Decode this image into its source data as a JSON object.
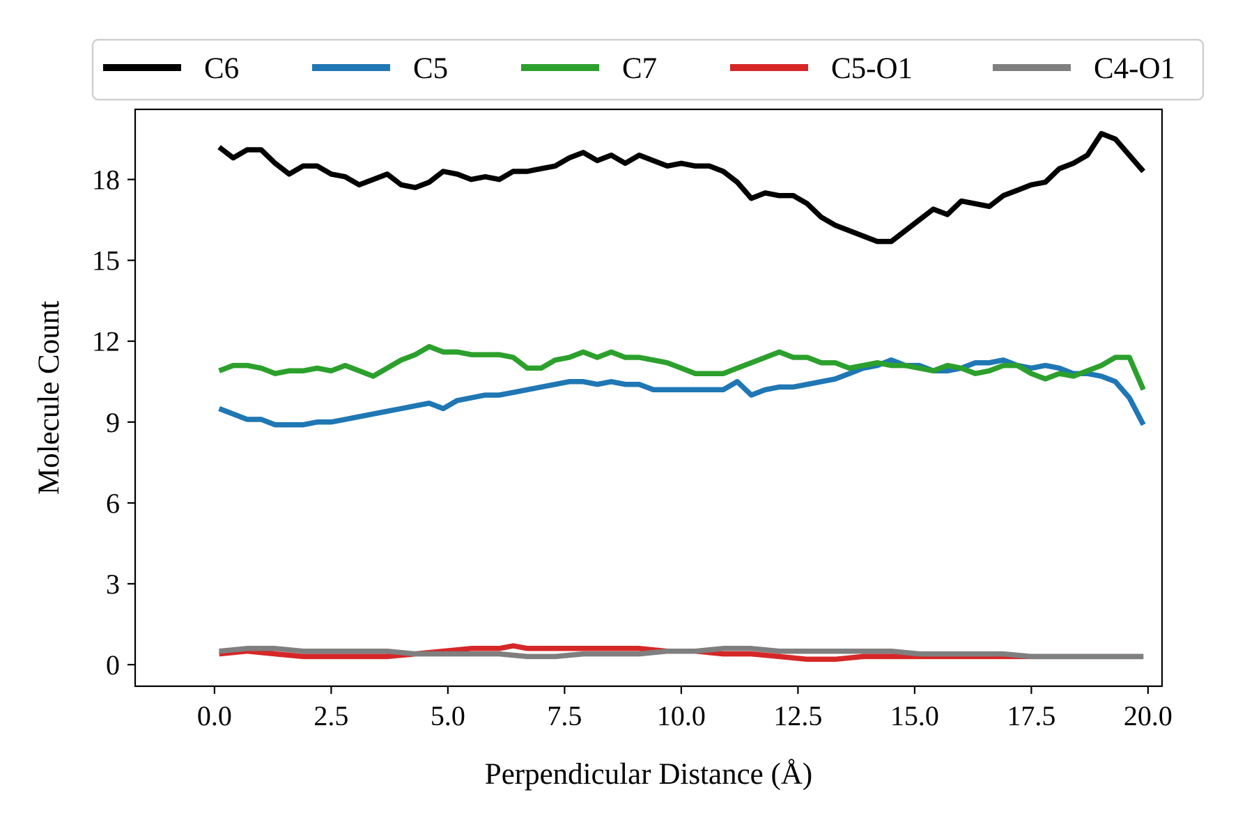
{
  "chart_data": {
    "type": "line",
    "xlabel": "Perpendicular Distance (Å)",
    "ylabel": "Molecule Count",
    "xlim": [
      -1.7,
      20.3
    ],
    "ylim": [
      -0.8,
      20.6
    ],
    "xticks": [
      0.0,
      2.5,
      5.0,
      7.5,
      10.0,
      12.5,
      15.0,
      17.5,
      20.0
    ],
    "xtick_labels": [
      "0.0",
      "2.5",
      "5.0",
      "7.5",
      "10.0",
      "12.5",
      "15.0",
      "17.5",
      "20.0"
    ],
    "yticks": [
      0,
      3,
      6,
      9,
      12,
      15,
      18
    ],
    "ytick_labels": [
      "0",
      "3",
      "6",
      "9",
      "12",
      "15",
      "18"
    ],
    "grid": false,
    "legend": "top, outside, single row",
    "series": [
      {
        "name": "C6",
        "color": "#000000",
        "x": [
          0.1,
          0.4,
          0.7,
          1.0,
          1.3,
          1.6,
          1.9,
          2.2,
          2.5,
          2.8,
          3.1,
          3.4,
          3.7,
          4.0,
          4.3,
          4.6,
          4.9,
          5.2,
          5.5,
          5.8,
          6.1,
          6.4,
          6.7,
          7.0,
          7.3,
          7.6,
          7.9,
          8.2,
          8.5,
          8.8,
          9.1,
          9.4,
          9.7,
          10.0,
          10.3,
          10.6,
          10.9,
          11.2,
          11.5,
          11.8,
          12.1,
          12.4,
          12.7,
          13.0,
          13.3,
          13.6,
          13.9,
          14.2,
          14.5,
          14.8,
          15.1,
          15.4,
          15.7,
          16.0,
          16.3,
          16.6,
          16.9,
          17.2,
          17.5,
          17.8,
          18.1,
          18.4,
          18.7,
          19.0,
          19.3,
          19.6,
          19.9
        ],
        "y": [
          19.2,
          18.8,
          19.1,
          19.1,
          18.6,
          18.2,
          18.5,
          18.5,
          18.2,
          18.1,
          17.8,
          18.0,
          18.2,
          17.8,
          17.7,
          17.9,
          18.3,
          18.2,
          18.0,
          18.1,
          18.0,
          18.3,
          18.3,
          18.4,
          18.5,
          18.8,
          19.0,
          18.7,
          18.9,
          18.6,
          18.9,
          18.7,
          18.5,
          18.6,
          18.5,
          18.5,
          18.3,
          17.9,
          17.3,
          17.5,
          17.4,
          17.4,
          17.1,
          16.6,
          16.3,
          16.1,
          15.9,
          15.7,
          15.7,
          16.1,
          16.5,
          16.9,
          16.7,
          17.2,
          17.1,
          17.0,
          17.4,
          17.6,
          17.8,
          17.9,
          18.4,
          18.6,
          18.9,
          19.7,
          19.5,
          18.9,
          18.3
        ]
      },
      {
        "name": "C5",
        "color": "#1f77b4",
        "x": [
          0.1,
          0.4,
          0.7,
          1.0,
          1.3,
          1.6,
          1.9,
          2.2,
          2.5,
          2.8,
          3.1,
          3.4,
          3.7,
          4.0,
          4.3,
          4.6,
          4.9,
          5.2,
          5.5,
          5.8,
          6.1,
          6.4,
          6.7,
          7.0,
          7.3,
          7.6,
          7.9,
          8.2,
          8.5,
          8.8,
          9.1,
          9.4,
          9.7,
          10.0,
          10.3,
          10.6,
          10.9,
          11.2,
          11.5,
          11.8,
          12.1,
          12.4,
          12.7,
          13.0,
          13.3,
          13.6,
          13.9,
          14.2,
          14.5,
          14.8,
          15.1,
          15.4,
          15.7,
          16.0,
          16.3,
          16.6,
          16.9,
          17.2,
          17.5,
          17.8,
          18.1,
          18.4,
          18.7,
          19.0,
          19.3,
          19.6,
          19.9
        ],
        "y": [
          9.5,
          9.3,
          9.1,
          9.1,
          8.9,
          8.9,
          8.9,
          9.0,
          9.0,
          9.1,
          9.2,
          9.3,
          9.4,
          9.5,
          9.6,
          9.7,
          9.5,
          9.8,
          9.9,
          10.0,
          10.0,
          10.1,
          10.2,
          10.3,
          10.4,
          10.5,
          10.5,
          10.4,
          10.5,
          10.4,
          10.4,
          10.2,
          10.2,
          10.2,
          10.2,
          10.2,
          10.2,
          10.5,
          10.0,
          10.2,
          10.3,
          10.3,
          10.4,
          10.5,
          10.6,
          10.8,
          11.0,
          11.1,
          11.3,
          11.1,
          11.1,
          10.9,
          10.9,
          11.0,
          11.2,
          11.2,
          11.3,
          11.1,
          11.0,
          11.1,
          11.0,
          10.8,
          10.8,
          10.7,
          10.5,
          9.9,
          8.9
        ]
      },
      {
        "name": "C7",
        "color": "#2ca02c",
        "x": [
          0.1,
          0.4,
          0.7,
          1.0,
          1.3,
          1.6,
          1.9,
          2.2,
          2.5,
          2.8,
          3.1,
          3.4,
          3.7,
          4.0,
          4.3,
          4.6,
          4.9,
          5.2,
          5.5,
          5.8,
          6.1,
          6.4,
          6.7,
          7.0,
          7.3,
          7.6,
          7.9,
          8.2,
          8.5,
          8.8,
          9.1,
          9.4,
          9.7,
          10.0,
          10.3,
          10.6,
          10.9,
          11.2,
          11.5,
          11.8,
          12.1,
          12.4,
          12.7,
          13.0,
          13.3,
          13.6,
          13.9,
          14.2,
          14.5,
          14.8,
          15.1,
          15.4,
          15.7,
          16.0,
          16.3,
          16.6,
          16.9,
          17.2,
          17.5,
          17.8,
          18.1,
          18.4,
          18.7,
          19.0,
          19.3,
          19.6,
          19.9
        ],
        "y": [
          10.9,
          11.1,
          11.1,
          11.0,
          10.8,
          10.9,
          10.9,
          11.0,
          10.9,
          11.1,
          10.9,
          10.7,
          11.0,
          11.3,
          11.5,
          11.8,
          11.6,
          11.6,
          11.5,
          11.5,
          11.5,
          11.4,
          11.0,
          11.0,
          11.3,
          11.4,
          11.6,
          11.4,
          11.6,
          11.4,
          11.4,
          11.3,
          11.2,
          11.0,
          10.8,
          10.8,
          10.8,
          11.0,
          11.2,
          11.4,
          11.6,
          11.4,
          11.4,
          11.2,
          11.2,
          11.0,
          11.1,
          11.2,
          11.1,
          11.1,
          11.0,
          10.9,
          11.1,
          11.0,
          10.8,
          10.9,
          11.1,
          11.1,
          10.8,
          10.6,
          10.8,
          10.7,
          10.9,
          11.1,
          11.4,
          11.4,
          10.2
        ]
      },
      {
        "name": "C5-O1",
        "color": "#d62728",
        "x": [
          0.1,
          0.7,
          1.3,
          1.9,
          2.5,
          3.1,
          3.7,
          4.3,
          4.9,
          5.5,
          6.1,
          6.4,
          6.7,
          7.3,
          7.9,
          8.5,
          9.1,
          9.7,
          10.3,
          10.9,
          11.5,
          12.1,
          12.7,
          13.3,
          13.9,
          14.5,
          15.1,
          15.7,
          16.3,
          16.9,
          17.5,
          18.1,
          18.7,
          19.3,
          19.9
        ],
        "y": [
          0.4,
          0.5,
          0.4,
          0.3,
          0.3,
          0.3,
          0.3,
          0.4,
          0.5,
          0.6,
          0.6,
          0.7,
          0.6,
          0.6,
          0.6,
          0.6,
          0.6,
          0.5,
          0.5,
          0.4,
          0.4,
          0.3,
          0.2,
          0.2,
          0.3,
          0.3,
          0.3,
          0.3,
          0.3,
          0.3,
          0.3,
          0.3,
          0.3,
          0.3,
          0.3
        ]
      },
      {
        "name": "C4-O1",
        "color": "#7f7f7f",
        "x": [
          0.1,
          0.7,
          1.3,
          1.9,
          2.5,
          3.1,
          3.7,
          4.3,
          4.9,
          5.5,
          6.1,
          6.7,
          7.3,
          7.9,
          8.5,
          9.1,
          9.7,
          10.3,
          10.9,
          11.5,
          12.1,
          12.7,
          13.3,
          13.9,
          14.5,
          15.1,
          15.7,
          16.3,
          16.9,
          17.5,
          18.1,
          18.7,
          19.3,
          19.9
        ],
        "y": [
          0.5,
          0.6,
          0.6,
          0.5,
          0.5,
          0.5,
          0.5,
          0.4,
          0.4,
          0.4,
          0.4,
          0.3,
          0.3,
          0.4,
          0.4,
          0.4,
          0.5,
          0.5,
          0.6,
          0.6,
          0.5,
          0.5,
          0.5,
          0.5,
          0.5,
          0.4,
          0.4,
          0.4,
          0.4,
          0.3,
          0.3,
          0.3,
          0.3,
          0.3
        ]
      }
    ]
  }
}
